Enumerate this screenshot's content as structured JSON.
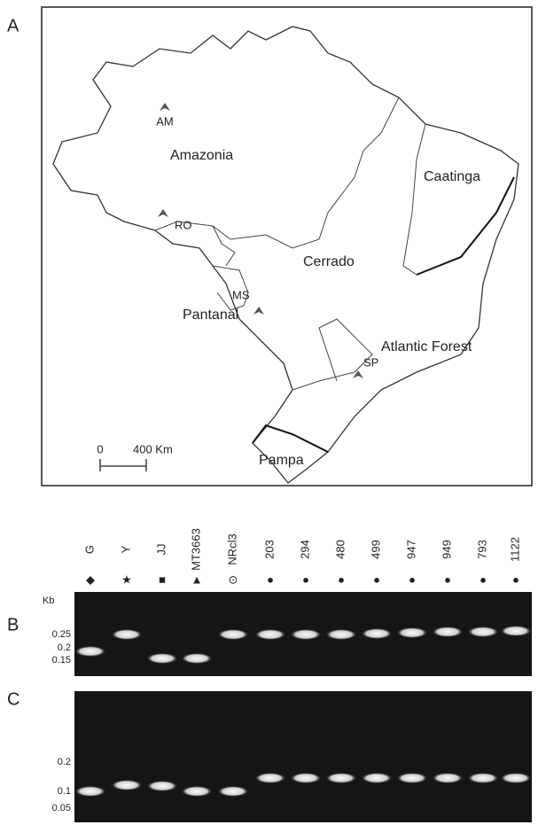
{
  "panels": {
    "a": "A",
    "b": "B",
    "c": "C"
  },
  "map": {
    "sites": [
      "AM",
      "RO",
      "MS",
      "SP"
    ],
    "biomes": [
      "Amazonia",
      "Cerrado",
      "Caatinga",
      "Pantanal",
      "Atlantic Forest",
      "Pampa"
    ],
    "scale": {
      "start": "0",
      "end": "400 Km"
    }
  },
  "gel": {
    "lanes": [
      {
        "label": "G",
        "symbol": "◆"
      },
      {
        "label": "Y",
        "symbol": "★"
      },
      {
        "label": "JJ",
        "symbol": "■"
      },
      {
        "label": "MT3663",
        "symbol": "▲"
      },
      {
        "label": "NRcl3",
        "symbol": "⊙"
      },
      {
        "label": "203",
        "symbol": "●"
      },
      {
        "label": "294",
        "symbol": "●"
      },
      {
        "label": "480",
        "symbol": "●"
      },
      {
        "label": "499",
        "symbol": "●"
      },
      {
        "label": "947",
        "symbol": "●"
      },
      {
        "label": "949",
        "symbol": "●"
      },
      {
        "label": "793",
        "symbol": "●"
      },
      {
        "label": "1122",
        "symbol": "●"
      }
    ],
    "b_unit": "Kb",
    "b_ladder": [
      "0.25",
      "0.2",
      "0.15"
    ],
    "c_ladder": [
      "0.2",
      "0.1",
      "0.05"
    ]
  }
}
